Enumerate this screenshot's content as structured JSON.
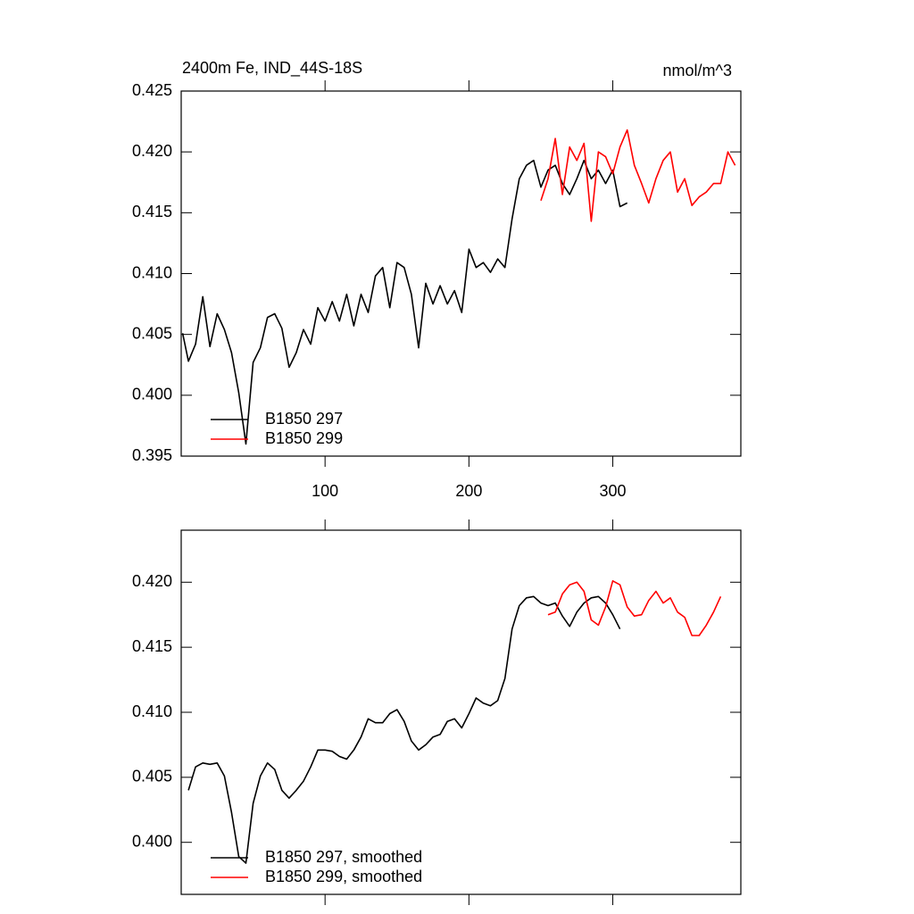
{
  "chart_data": [
    {
      "type": "line",
      "title": "2400m Fe, IND_44S-18S",
      "right_title": "nmol/m^3",
      "x": [
        1,
        5,
        10,
        15,
        20,
        25,
        30,
        35,
        40,
        45,
        50,
        55,
        60,
        65,
        70,
        75,
        80,
        85,
        90,
        95,
        100,
        105,
        110,
        115,
        120,
        125,
        130,
        135,
        140,
        145,
        150,
        155,
        160,
        165,
        170,
        175,
        180,
        185,
        190,
        195,
        200,
        205,
        210,
        215,
        220,
        225,
        230,
        235,
        240,
        245,
        250,
        255,
        260,
        265,
        270,
        275,
        280,
        285,
        290,
        295,
        300,
        305,
        310,
        315,
        320,
        325,
        330,
        335,
        340,
        345,
        350,
        355,
        360,
        365,
        370,
        375,
        380,
        385
      ],
      "series": [
        {
          "name": "B1850 297",
          "color": "#000000",
          "values": [
            0.4051,
            0.4028,
            0.4042,
            0.4081,
            0.404,
            0.4067,
            0.4054,
            0.4035,
            0.4002,
            0.396,
            0.4027,
            0.4039,
            0.4064,
            0.4067,
            0.4055,
            0.4023,
            0.4035,
            0.4054,
            0.4042,
            0.4072,
            0.4061,
            0.4077,
            0.4061,
            0.4083,
            0.4057,
            0.4083,
            0.4068,
            0.4098,
            0.4105,
            0.4072,
            0.4109,
            0.4105,
            0.4083,
            0.4039,
            0.4092,
            0.4075,
            0.409,
            0.4075,
            0.4086,
            0.4068,
            0.412,
            0.4105,
            0.4109,
            0.4101,
            0.4112,
            0.4105,
            0.4145,
            0.4178,
            0.4189,
            0.4193,
            0.4171,
            0.4185,
            0.4189,
            0.4174,
            0.4165,
            0.4178,
            0.4193,
            0.4178,
            0.4185,
            0.4174,
            0.4185,
            0.4155,
            0.4158,
            null,
            null,
            null,
            null,
            null,
            null,
            null,
            null,
            null,
            null,
            null,
            null,
            null,
            null,
            null
          ]
        },
        {
          "name": "B1850 299",
          "color": "#ff0000",
          "values": [
            null,
            null,
            null,
            null,
            null,
            null,
            null,
            null,
            null,
            null,
            null,
            null,
            null,
            null,
            null,
            null,
            null,
            null,
            null,
            null,
            null,
            null,
            null,
            null,
            null,
            null,
            null,
            null,
            null,
            null,
            null,
            null,
            null,
            null,
            null,
            null,
            null,
            null,
            null,
            null,
            null,
            null,
            null,
            null,
            null,
            null,
            null,
            null,
            null,
            null,
            0.416,
            0.4178,
            0.4211,
            0.4165,
            0.4204,
            0.4193,
            0.4207,
            0.4143,
            0.42,
            0.4196,
            0.4182,
            0.4204,
            0.4218,
            0.4189,
            0.4174,
            0.4158,
            0.4178,
            0.4193,
            0.42,
            0.4167,
            0.4178,
            0.4156,
            0.4163,
            0.4167,
            0.4174,
            0.4174,
            0.42,
            0.4189
          ]
        }
      ],
      "xlim": [
        0,
        389
      ],
      "xticks": [
        100,
        200,
        300
      ],
      "ylim": [
        0.395,
        0.425
      ],
      "yticks": [
        {
          "value": 0.395,
          "label": "0.395"
        },
        {
          "value": 0.4,
          "label": "0.400"
        },
        {
          "value": 0.405,
          "label": "0.405"
        },
        {
          "value": 0.41,
          "label": "0.410"
        },
        0.415,
        {
          "value": 0.42,
          "label": "0.420"
        },
        0.425
      ],
      "legend": "lower left"
    },
    {
      "type": "line",
      "x": [
        5,
        10,
        15,
        20,
        25,
        30,
        35,
        40,
        45,
        50,
        55,
        60,
        65,
        70,
        75,
        80,
        85,
        90,
        95,
        100,
        105,
        110,
        115,
        120,
        125,
        130,
        135,
        140,
        145,
        150,
        155,
        160,
        165,
        170,
        175,
        180,
        185,
        190,
        195,
        200,
        205,
        210,
        215,
        220,
        225,
        230,
        235,
        240,
        245,
        250,
        255,
        260,
        265,
        270,
        275,
        280,
        285,
        290,
        295,
        300,
        305,
        310,
        315,
        320,
        325,
        330,
        335,
        340,
        345,
        350,
        355,
        360,
        365,
        370,
        375
      ],
      "series": [
        {
          "name": "B1850 297, smoothed",
          "color": "#000000",
          "values": [
            0.404,
            0.4058,
            0.4061,
            0.406,
            0.4061,
            0.4051,
            0.4023,
            0.3989,
            0.3984,
            0.403,
            0.4051,
            0.4061,
            0.4056,
            0.404,
            0.4034,
            0.404,
            0.4047,
            0.4058,
            0.4071,
            0.4071,
            0.407,
            0.4066,
            0.4064,
            0.4071,
            0.4081,
            0.4095,
            0.4092,
            0.4092,
            0.4099,
            0.4102,
            0.4093,
            0.4078,
            0.4071,
            0.4075,
            0.4081,
            0.4083,
            0.4093,
            0.4095,
            0.4088,
            0.4099,
            0.4111,
            0.4107,
            0.4105,
            0.4109,
            0.4126,
            0.4164,
            0.4182,
            0.4188,
            0.4189,
            0.4184,
            0.4182,
            0.4184,
            0.4174,
            0.4166,
            0.4177,
            0.4184,
            0.4188,
            0.4189,
            0.4184,
            0.4175,
            0.4164,
            null,
            null,
            null,
            null,
            null,
            null,
            null,
            null,
            null,
            null,
            null,
            null,
            null,
            null
          ]
        },
        {
          "name": "B1850 299, smoothed",
          "color": "#ff0000",
          "values": [
            null,
            null,
            null,
            null,
            null,
            null,
            null,
            null,
            null,
            null,
            null,
            null,
            null,
            null,
            null,
            null,
            null,
            null,
            null,
            null,
            null,
            null,
            null,
            null,
            null,
            null,
            null,
            null,
            null,
            null,
            null,
            null,
            null,
            null,
            null,
            null,
            null,
            null,
            null,
            null,
            null,
            null,
            null,
            null,
            null,
            null,
            null,
            null,
            null,
            null,
            0.4175,
            0.4177,
            0.4191,
            0.4198,
            0.42,
            0.4193,
            0.4171,
            0.4167,
            0.4181,
            0.4201,
            0.4198,
            0.4181,
            0.4174,
            0.4175,
            0.4186,
            0.4193,
            0.4184,
            0.4188,
            0.4177,
            0.4173,
            0.4159,
            0.4159,
            0.4167,
            0.4177,
            0.4189
          ]
        }
      ],
      "xlim": [
        0,
        389
      ],
      "xticks": [
        100,
        200,
        300
      ],
      "xtick_labels": false,
      "ylim": [
        0.396,
        0.424
      ],
      "yticks": [
        {
          "value": 0.4,
          "label": "0.400"
        },
        {
          "value": 0.405,
          "label": "0.405"
        },
        {
          "value": 0.41,
          "label": "0.410"
        },
        {
          "value": 0.415,
          "label": "0.415"
        },
        {
          "value": 0.42,
          "label": "0.420"
        }
      ],
      "legend": "lower left"
    }
  ]
}
